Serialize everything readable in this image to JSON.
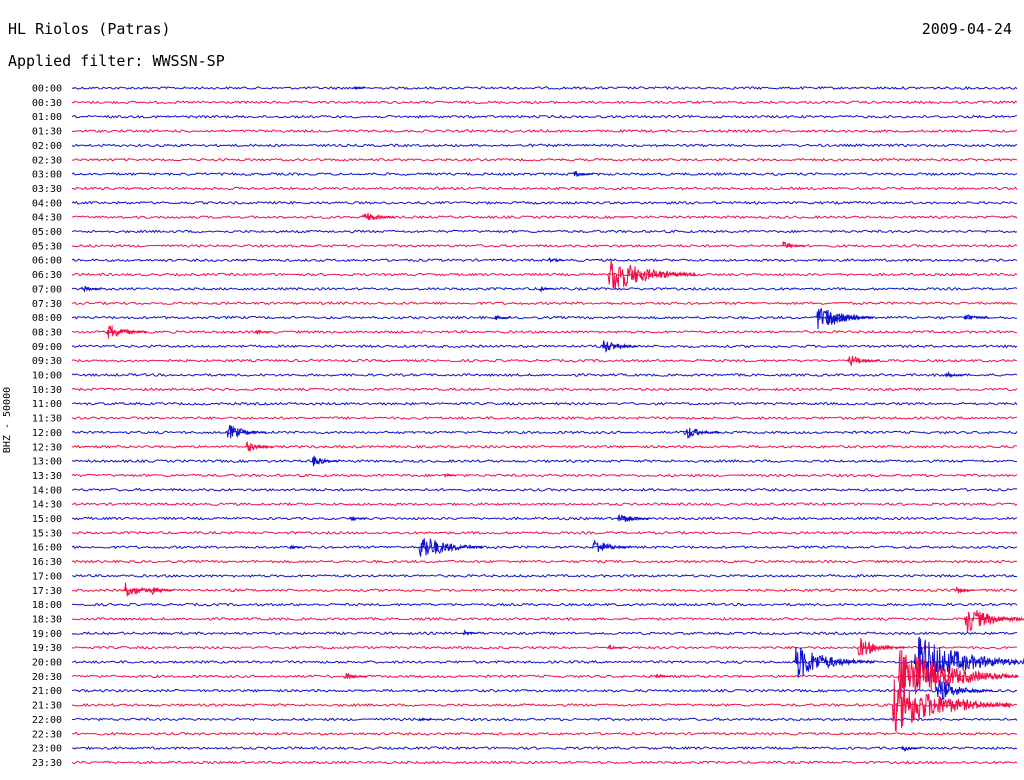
{
  "header": {
    "station": "HL Riolos (Patras)",
    "date": "2009-04-24",
    "filter": "Applied filter: WWSSN-SP",
    "channel_label": "BHZ - 50000"
  },
  "colors": {
    "even_row": "#1010d0",
    "odd_row": "#f01048"
  },
  "chart_data": {
    "type": "line",
    "title": "HL Riolos (Patras)",
    "subtitle": "Applied filter: WWSSN-SP",
    "ylabel": "BHZ - 50000",
    "xlabel": "",
    "grid": false,
    "row_labels": [
      "00:00",
      "00:30",
      "01:00",
      "01:30",
      "02:00",
      "02:30",
      "03:00",
      "03:30",
      "04:00",
      "04:30",
      "05:00",
      "05:30",
      "06:00",
      "06:30",
      "07:00",
      "07:30",
      "08:00",
      "08:30",
      "09:00",
      "09:30",
      "10:00",
      "10:30",
      "11:00",
      "11:30",
      "12:00",
      "12:30",
      "13:00",
      "13:30",
      "14:00",
      "14:30",
      "15:00",
      "15:30",
      "16:00",
      "16:30",
      "17:00",
      "17:30",
      "18:00",
      "18:30",
      "19:00",
      "19:30",
      "20:00",
      "20:30",
      "21:00",
      "21:30",
      "22:00",
      "22:30",
      "23:00",
      "23:30"
    ],
    "row_minutes": 30,
    "series_colors": [
      "#1010d0",
      "#f01048"
    ],
    "events": [
      {
        "row": 0,
        "minute": 8.9,
        "amplitude": 3
      },
      {
        "row": 6,
        "minute": 15.9,
        "amplitude": 5
      },
      {
        "row": 9,
        "minute": 9.2,
        "amplitude": 8
      },
      {
        "row": 11,
        "minute": 22.5,
        "amplitude": 6
      },
      {
        "row": 12,
        "minute": 15.1,
        "amplitude": 4
      },
      {
        "row": 13,
        "minute": 17.0,
        "amplitude": 22
      },
      {
        "row": 14,
        "minute": 0.3,
        "amplitude": 5
      },
      {
        "row": 14,
        "minute": 14.8,
        "amplitude": 4
      },
      {
        "row": 16,
        "minute": 13.4,
        "amplitude": 4
      },
      {
        "row": 16,
        "minute": 23.6,
        "amplitude": 14
      },
      {
        "row": 16,
        "minute": 23.9,
        "amplitude": 12
      },
      {
        "row": 16,
        "minute": 28.3,
        "amplitude": 6
      },
      {
        "row": 17,
        "minute": 1.1,
        "amplitude": 10
      },
      {
        "row": 17,
        "minute": 5.8,
        "amplitude": 4
      },
      {
        "row": 18,
        "minute": 16.8,
        "amplitude": 9
      },
      {
        "row": 19,
        "minute": 24.6,
        "amplitude": 8
      },
      {
        "row": 20,
        "minute": 27.7,
        "amplitude": 5
      },
      {
        "row": 24,
        "minute": 4.9,
        "amplitude": 10
      },
      {
        "row": 24,
        "minute": 19.4,
        "amplitude": 9
      },
      {
        "row": 25,
        "minute": 5.5,
        "amplitude": 7
      },
      {
        "row": 26,
        "minute": 7.6,
        "amplitude": 7
      },
      {
        "row": 27,
        "minute": 11.8,
        "amplitude": 3
      },
      {
        "row": 30,
        "minute": 8.8,
        "amplitude": 4
      },
      {
        "row": 30,
        "minute": 17.3,
        "amplitude": 8
      },
      {
        "row": 32,
        "minute": 11.0,
        "amplitude": 16
      },
      {
        "row": 32,
        "minute": 16.5,
        "amplitude": 10
      },
      {
        "row": 32,
        "minute": 6.9,
        "amplitude": 3
      },
      {
        "row": 35,
        "minute": 1.6,
        "amplitude": 10
      },
      {
        "row": 35,
        "minute": 2.5,
        "amplitude": 6
      },
      {
        "row": 35,
        "minute": 28.0,
        "amplitude": 5
      },
      {
        "row": 37,
        "minute": 28.3,
        "amplitude": 16
      },
      {
        "row": 38,
        "minute": 12.4,
        "amplitude": 4
      },
      {
        "row": 39,
        "minute": 17.0,
        "amplitude": 4
      },
      {
        "row": 39,
        "minute": 24.9,
        "amplitude": 12
      },
      {
        "row": 40,
        "minute": 22.9,
        "amplitude": 20
      },
      {
        "row": 40,
        "minute": 26.7,
        "amplitude": 30
      },
      {
        "row": 41,
        "minute": 8.6,
        "amplitude": 6
      },
      {
        "row": 41,
        "minute": 18.5,
        "amplitude": 4
      },
      {
        "row": 41,
        "minute": 26.2,
        "amplitude": 34
      },
      {
        "row": 42,
        "minute": 27.4,
        "amplitude": 14
      },
      {
        "row": 43,
        "minute": 26.0,
        "amplitude": 30
      },
      {
        "row": 44,
        "minute": 11.0,
        "amplitude": 3
      },
      {
        "row": 46,
        "minute": 26.3,
        "amplitude": 5
      }
    ]
  }
}
